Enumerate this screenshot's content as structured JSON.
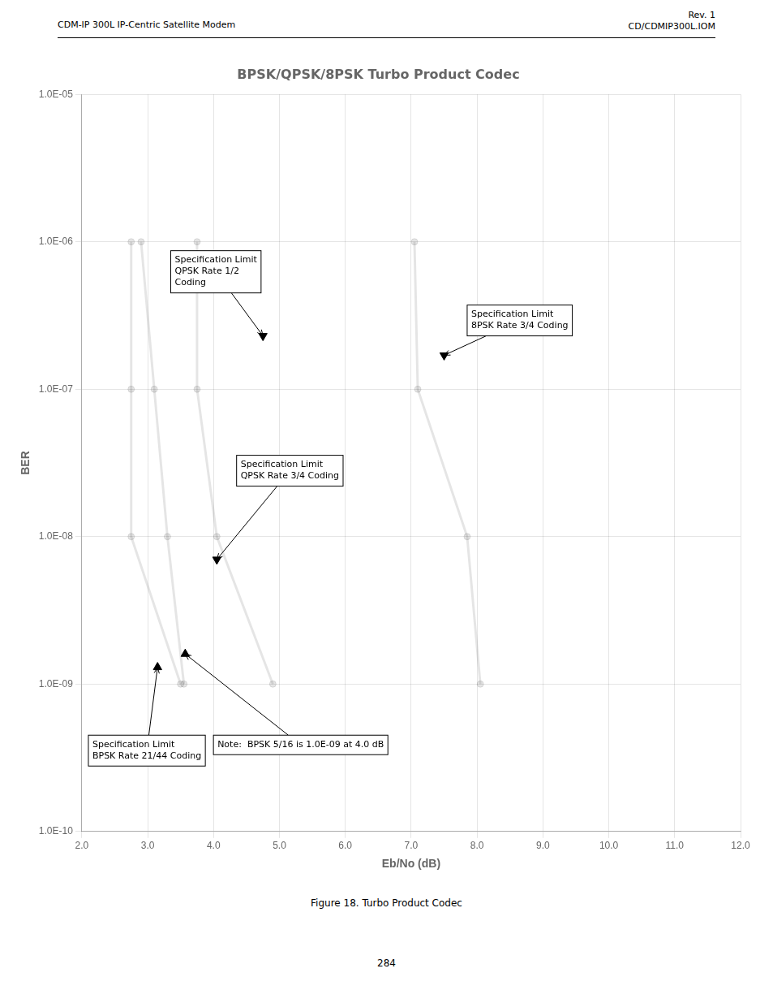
{
  "chart_data": {
    "type": "line",
    "title": "BPSK/QPSK/8PSK Turbo Product Codec",
    "x_label": "Eb/No (dB)",
    "y_label": "BER",
    "log": "y",
    "grid": true,
    "xlim": [
      2.0,
      12.0
    ],
    "xticks": [
      {
        "value": 2.0,
        "label": "2.0"
      },
      {
        "value": 3.0,
        "label": "3.0"
      },
      {
        "value": 4.0,
        "label": "4.0"
      },
      {
        "value": 5.0,
        "label": "5.0"
      },
      {
        "value": 6.0,
        "label": "6.0"
      },
      {
        "value": 7.0,
        "label": "7.0"
      },
      {
        "value": 8.0,
        "label": "8.0"
      },
      {
        "value": 9.0,
        "label": "9.0"
      },
      {
        "value": 10.0,
        "label": "10.0"
      },
      {
        "value": 11.0,
        "label": "11.0"
      },
      {
        "value": 12.0,
        "label": "12.0"
      }
    ],
    "ylim": [
      1e-10,
      1e-05
    ],
    "yticks": [
      {
        "value": 1e-05,
        "label": "1.0E-05"
      },
      {
        "value": 1e-06,
        "label": "1.0E-06"
      },
      {
        "value": 1e-07,
        "label": "1.0E-07"
      },
      {
        "value": 1e-08,
        "label": "1.0E-08"
      },
      {
        "value": 1e-09,
        "label": "1.0E-09"
      },
      {
        "value": 1e-10,
        "label": "1.0E-10"
      }
    ],
    "series": [
      {
        "x": [
          2.75,
          2.75,
          2.75,
          3.5
        ],
        "values": [
          1e-06,
          1e-07,
          1e-08,
          1e-09
        ],
        "marker": "circle"
      },
      {
        "x": [
          2.9,
          3.1,
          3.3,
          3.55
        ],
        "values": [
          1e-06,
          1e-07,
          1e-08,
          1e-09
        ],
        "marker": "circle"
      },
      {
        "x": [
          3.75,
          3.75,
          4.05,
          4.9
        ],
        "values": [
          1e-06,
          1e-07,
          1e-08,
          1e-09
        ],
        "marker": "circle"
      },
      {
        "x": [
          7.05,
          7.1,
          7.85,
          8.05
        ],
        "values": [
          1e-06,
          1e-07,
          1e-08,
          1e-09
        ],
        "marker": "circle"
      },
      {
        "type": "scatter",
        "x": [
          4.75,
          4.05,
          7.5
        ],
        "values": [
          2.3e-07,
          7e-09,
          1.7e-07
        ],
        "marker": "triangle_down",
        "color": "#000000"
      },
      {
        "type": "scatter",
        "x": [
          3.15,
          3.57
        ],
        "values": [
          1.3e-09,
          1.6e-09
        ],
        "marker": "triangle_up",
        "color": "#000000"
      }
    ],
    "annotations": [
      {
        "text": "Specification Limit\nQPSK Rate 1/2\nCoding",
        "x": 4.75,
        "y": 2.3e-07,
        "text_x": 3.35,
        "text_y": 4.5e-07
      },
      {
        "text": "Specification Limit\n8PSK Rate 3/4 Coding",
        "x": 7.5,
        "y": 1.7e-07,
        "text_x": 7.85,
        "text_y": 2.3e-07
      },
      {
        "text": "Specification Limit\nQPSK Rate 3/4 Coding",
        "x": 4.05,
        "y": 7e-09,
        "text_x": 4.35,
        "text_y": 2.2e-08
      },
      {
        "text": "Specification Limit\nBPSK Rate 21/44 Coding",
        "x": 3.15,
        "y": 1.3e-09,
        "text_x": 2.1,
        "text_y": 4.5e-10
      },
      {
        "text": "Note:  BPSK 5/16 is 1.0E-09 at 4.0 dB",
        "x": 3.57,
        "y": 1.6e-09,
        "text_x": 3.5,
        "text_y": 4.5e-10
      }
    ]
  },
  "header_left": "CDM-IP 300L IP-Centric Satellite Modem",
  "header_right": [
    "Rev. 1",
    "CD/CDMIP300L.IOM"
  ],
  "caption": "Figure 18. Turbo Product Codec",
  "footer": "284"
}
